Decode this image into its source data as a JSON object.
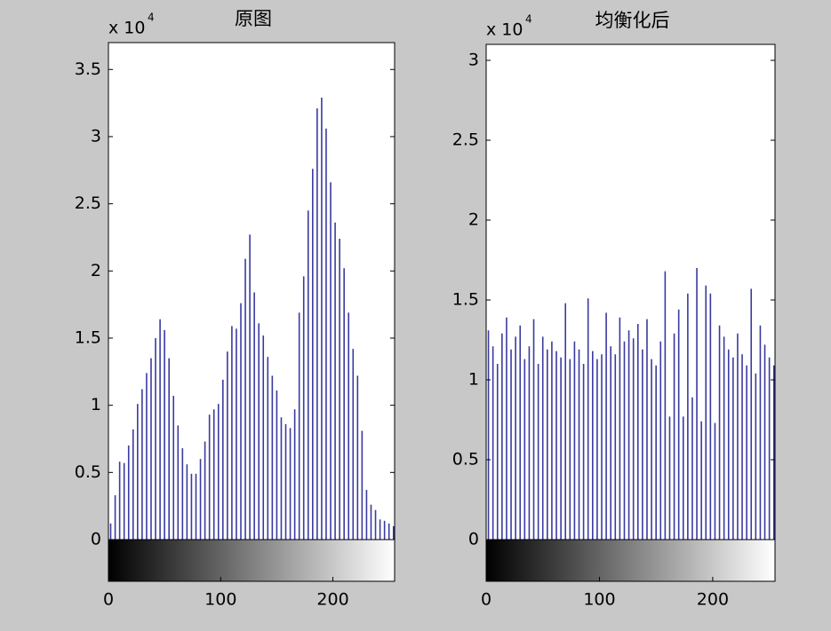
{
  "chart_data": [
    {
      "type": "stem",
      "title": "原图",
      "y_multiplier": "x 10",
      "y_exponent": "4",
      "color": "#3a3aa0",
      "colorbar": true,
      "x": [
        2,
        6,
        10,
        14,
        18,
        22,
        26,
        30,
        34,
        38,
        42,
        46,
        50,
        54,
        58,
        62,
        66,
        70,
        74,
        78,
        82,
        86,
        90,
        94,
        98,
        102,
        106,
        110,
        114,
        118,
        122,
        126,
        130,
        134,
        138,
        142,
        146,
        150,
        154,
        158,
        162,
        166,
        170,
        174,
        178,
        182,
        186,
        190,
        194,
        198,
        202,
        206,
        210,
        214,
        218,
        222,
        226,
        230,
        234,
        238,
        242,
        246,
        250,
        254
      ],
      "values": [
        0.12,
        0.33,
        0.58,
        0.57,
        0.7,
        0.82,
        1.01,
        1.12,
        1.24,
        1.35,
        1.5,
        1.64,
        1.56,
        1.35,
        1.07,
        0.85,
        0.68,
        0.56,
        0.49,
        0.49,
        0.6,
        0.73,
        0.93,
        0.97,
        1.01,
        1.19,
        1.4,
        1.59,
        1.57,
        1.76,
        2.09,
        2.27,
        1.84,
        1.61,
        1.52,
        1.36,
        1.22,
        1.11,
        0.91,
        0.86,
        0.83,
        0.97,
        1.69,
        1.96,
        2.45,
        2.76,
        3.21,
        3.29,
        3.06,
        2.66,
        2.36,
        2.24,
        2.02,
        1.69,
        1.42,
        1.22,
        0.81,
        0.37,
        0.26,
        0.22,
        0.15,
        0.14,
        0.12,
        0.1
      ],
      "xlim": [
        0,
        255
      ],
      "xticks": [
        0,
        100,
        200
      ],
      "ylim": [
        0,
        3.7
      ],
      "yticks": [
        0,
        0.5,
        1,
        1.5,
        2,
        2.5,
        3,
        3.5
      ]
    },
    {
      "type": "stem",
      "title": "均衡化后",
      "y_multiplier": "x 10",
      "y_exponent": "4",
      "color": "#3a3aa0",
      "colorbar": true,
      "x": [
        2,
        6,
        10,
        14,
        18,
        22,
        26,
        30,
        34,
        38,
        42,
        46,
        50,
        54,
        58,
        62,
        66,
        70,
        74,
        78,
        82,
        86,
        90,
        94,
        98,
        102,
        106,
        110,
        114,
        118,
        122,
        126,
        130,
        134,
        138,
        142,
        146,
        150,
        154,
        158,
        162,
        166,
        170,
        174,
        178,
        182,
        186,
        190,
        194,
        198,
        202,
        206,
        210,
        214,
        218,
        222,
        226,
        230,
        234,
        238,
        242,
        246,
        250,
        254
      ],
      "values": [
        1.31,
        1.21,
        1.1,
        1.29,
        1.39,
        1.19,
        1.27,
        1.34,
        1.13,
        1.21,
        1.38,
        1.1,
        1.27,
        1.19,
        1.24,
        1.18,
        1.14,
        1.48,
        1.13,
        1.24,
        1.19,
        1.1,
        1.51,
        1.18,
        1.13,
        1.16,
        1.42,
        1.21,
        1.16,
        1.39,
        1.24,
        1.31,
        1.26,
        1.35,
        1.19,
        1.38,
        1.13,
        1.09,
        1.24,
        1.68,
        0.77,
        1.29,
        1.44,
        0.77,
        1.54,
        0.89,
        1.7,
        0.74,
        1.59,
        1.54,
        0.73,
        1.34,
        1.27,
        1.19,
        1.14,
        1.29,
        1.16,
        1.09,
        1.57,
        1.04,
        1.34,
        1.22,
        1.14,
        1.09
      ],
      "xlim": [
        0,
        255
      ],
      "xticks": [
        0,
        100,
        200
      ],
      "ylim": [
        0,
        3.1
      ],
      "yticks": [
        0,
        0.5,
        1,
        1.5,
        2,
        2.5,
        3
      ]
    }
  ]
}
